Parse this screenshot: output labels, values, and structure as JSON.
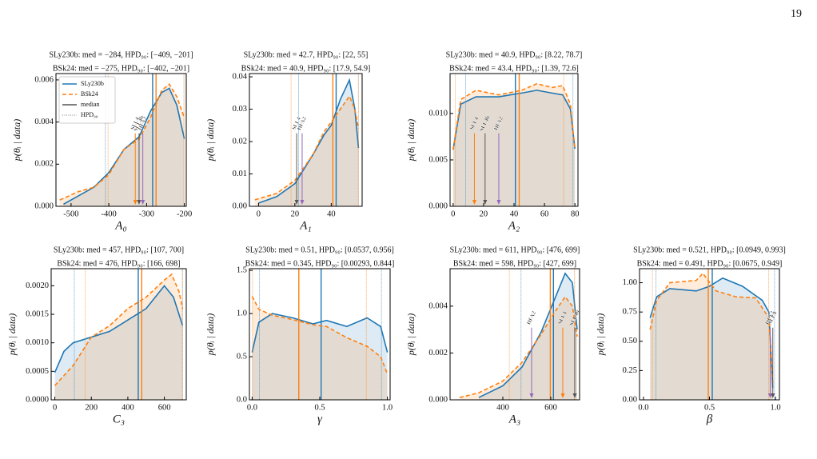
{
  "page_number": "19",
  "chart_data": [
    {
      "type": "line",
      "title": [
        "SLy230b: med = −284, HPD₉₀: [−409, −201]",
        "BSk24: med = −275, HPD₉₀: [−402, −201]"
      ],
      "xlabel": "A₀",
      "ylabel": "p(θᵢ | data)",
      "xlim": [
        -540,
        -195
      ],
      "ylim": [
        0,
        0.0063
      ],
      "xticks": [
        -500,
        -400,
        -300,
        -200
      ],
      "yticks": [
        {
          "value": 0,
          "label": "0.000"
        },
        {
          "value": 0.002,
          "label": "0.002"
        },
        {
          "value": 0.004,
          "label": "0.004"
        },
        {
          "value": 0.006,
          "label": "0.006"
        }
      ],
      "legend": true,
      "legend_extra": [
        "median",
        "HPD₉₀"
      ],
      "series": [
        {
          "name": "SLy230b",
          "color": "#1f77b4",
          "x": [
            -520,
            -480,
            -440,
            -400,
            -360,
            -320,
            -290,
            -260,
            -240,
            -220,
            -200
          ],
          "values": [
            0.0001,
            0.0005,
            0.0009,
            0.0016,
            0.0027,
            0.0033,
            0.0045,
            0.0054,
            0.0056,
            0.0048,
            0.0032
          ],
          "median": -284,
          "hpd": [
            -409,
            -201
          ]
        },
        {
          "name": "BSk24",
          "color": "#ff7f0e",
          "x": [
            -530,
            -480,
            -440,
            -400,
            -360,
            -320,
            -290,
            -260,
            -240,
            -220,
            -200
          ],
          "values": [
            0.0003,
            0.0007,
            0.0009,
            0.0015,
            0.0027,
            0.0032,
            0.0042,
            0.0055,
            0.0058,
            0.0052,
            0.0042
          ],
          "median": -275,
          "hpd": [
            -402,
            -201
          ]
        }
      ],
      "annotations": [
        {
          "label": "SLL4",
          "x": -330,
          "color": "#ff7f0e"
        },
        {
          "label": "SLL4b",
          "x": -320,
          "color": "#555555"
        },
        {
          "label": "HFA2",
          "x": -310,
          "color": "#9467bd"
        }
      ]
    },
    {
      "type": "line",
      "title": [
        "SLy230b: med = 42.7, HPD₉₀: [22, 55]",
        "BSk24: med = 40.9, HPD₉₀: [17.9, 54.9]"
      ],
      "xlabel": "A₁",
      "ylabel": "p(θᵢ | data)",
      "xlim": [
        -5,
        57
      ],
      "ylim": [
        0,
        0.041
      ],
      "xticks": [
        0,
        20,
        40
      ],
      "yticks": [
        {
          "value": 0,
          "label": "0.00"
        },
        0.01,
        0.02,
        0.03,
        0.04
      ],
      "series": [
        {
          "name": "SLy230b",
          "color": "#1f77b4",
          "x": [
            0,
            10,
            20,
            30,
            36,
            40,
            45,
            50,
            53,
            55
          ],
          "values": [
            0.001,
            0.003,
            0.007,
            0.016,
            0.022,
            0.025,
            0.033,
            0.039,
            0.03,
            0.018
          ],
          "median": 42.7,
          "hpd": [
            22,
            55
          ]
        },
        {
          "name": "BSk24",
          "color": "#ff7f0e",
          "x": [
            -2,
            10,
            20,
            30,
            36,
            40,
            45,
            50,
            53,
            55
          ],
          "values": [
            0.002,
            0.004,
            0.008,
            0.016,
            0.023,
            0.026,
            0.03,
            0.034,
            0.03,
            0.024
          ],
          "median": 40.9,
          "hpd": [
            17.9,
            54.9
          ]
        }
      ],
      "annotations": [
        {
          "label": "SLL4",
          "x": 21,
          "color": "#555555"
        },
        {
          "label": "HFA2",
          "x": 24,
          "color": "#9467bd"
        }
      ]
    },
    {
      "type": "line",
      "title": [
        "SLy230b: med = 40.9, HPD₉₀: [8.22, 78.7]",
        "BSk24: med = 43.4, HPD₉₀: [1.39, 72.6]"
      ],
      "xlabel": "A₂",
      "ylabel": "p(θᵢ | data)",
      "xlim": [
        -2,
        82
      ],
      "ylim": [
        0,
        0.0143
      ],
      "xticks": [
        0,
        20,
        40,
        60,
        80
      ],
      "yticks": [
        {
          "value": 0,
          "label": "0.000"
        },
        {
          "value": 0.005,
          "label": "0.005"
        },
        {
          "value": 0.01,
          "label": "0.010"
        }
      ],
      "series": [
        {
          "name": "SLy230b",
          "color": "#1f77b4",
          "x": [
            0,
            5,
            15,
            30,
            45,
            55,
            65,
            72,
            77,
            80
          ],
          "values": [
            0.0061,
            0.011,
            0.0118,
            0.0118,
            0.0122,
            0.0125,
            0.0122,
            0.012,
            0.0105,
            0.0062
          ],
          "median": 40.9,
          "hpd": [
            8.22,
            78.7
          ]
        },
        {
          "name": "BSk24",
          "color": "#ff7f0e",
          "x": [
            0,
            5,
            15,
            30,
            45,
            55,
            65,
            72,
            77,
            80
          ],
          "values": [
            0.0061,
            0.0115,
            0.0125,
            0.012,
            0.0125,
            0.0132,
            0.0128,
            0.013,
            0.011,
            0.0062
          ],
          "median": 43.4,
          "hpd": [
            1.39,
            72.6
          ]
        }
      ],
      "annotations": [
        {
          "label": "SLL4",
          "x": 14,
          "color": "#ff7f0e"
        },
        {
          "label": "SLL4b",
          "x": 21,
          "color": "#555555"
        },
        {
          "label": "HFA2",
          "x": 30,
          "color": "#9467bd"
        }
      ]
    },
    {
      "type": "line",
      "title": [
        "SLy230b: med = 457, HPD₉₀: [107, 700]",
        "BSk24: med = 476, HPD₉₀: [166, 698]"
      ],
      "xlabel": "C₃",
      "ylabel": "p(θᵢ | data)",
      "xlim": [
        -20,
        720
      ],
      "ylim": [
        0,
        0.0023
      ],
      "xticks": [
        0,
        200,
        400,
        600
      ],
      "yticks": [
        {
          "value": 0,
          "label": "0.0000"
        },
        0.0005,
        {
          "value": 0.001,
          "label": "0.0010"
        },
        0.0015,
        {
          "value": 0.002,
          "label": "0.0020"
        }
      ],
      "series": [
        {
          "name": "SLy230b",
          "color": "#1f77b4",
          "x": [
            0,
            50,
            100,
            200,
            300,
            400,
            500,
            600,
            650,
            700
          ],
          "values": [
            0.00048,
            0.00085,
            0.001,
            0.0011,
            0.0012,
            0.0014,
            0.0016,
            0.002,
            0.0018,
            0.0013
          ],
          "median": 457,
          "hpd": [
            107,
            700
          ]
        },
        {
          "name": "BSk24",
          "color": "#ff7f0e",
          "x": [
            0,
            100,
            200,
            300,
            400,
            500,
            600,
            640,
            680,
            700
          ],
          "values": [
            0.00025,
            0.0006,
            0.0011,
            0.0013,
            0.0016,
            0.0018,
            0.0021,
            0.0022,
            0.0019,
            0.0016
          ],
          "median": 476,
          "hpd": [
            166,
            698
          ]
        }
      ]
    },
    {
      "type": "line",
      "title": [
        "SLy230b: med = 0.51, HPD₉₀: [0.0537, 0.956]",
        "BSk24: med = 0.345, HPD₉₀: [0.00293, 0.844]"
      ],
      "xlabel": "γ",
      "ylabel": "p(θᵢ | data)",
      "xlim": [
        -0.02,
        1.02
      ],
      "ylim": [
        0,
        1.52
      ],
      "xticks": [
        {
          "value": 0,
          "label": "0.0"
        },
        0.5,
        {
          "value": 1,
          "label": "1.0"
        }
      ],
      "yticks": [
        {
          "value": 0,
          "label": "0.0"
        },
        0.5,
        {
          "value": 1,
          "label": "1.0"
        },
        1.5
      ],
      "series": [
        {
          "name": "SLy230b",
          "color": "#1f77b4",
          "x": [
            0,
            0.05,
            0.15,
            0.3,
            0.45,
            0.55,
            0.7,
            0.85,
            0.95,
            1
          ],
          "values": [
            0.55,
            0.9,
            1.0,
            0.95,
            0.88,
            0.92,
            0.85,
            0.95,
            0.85,
            0.55
          ],
          "median": 0.51,
          "hpd": [
            0.0537,
            0.956
          ]
        },
        {
          "name": "BSk24",
          "color": "#ff7f0e",
          "x": [
            0,
            0.05,
            0.15,
            0.3,
            0.45,
            0.55,
            0.7,
            0.85,
            0.95,
            1
          ],
          "values": [
            1.2,
            1.05,
            0.98,
            0.93,
            0.87,
            0.85,
            0.72,
            0.62,
            0.5,
            0.3
          ],
          "median": 0.345,
          "hpd": [
            0.00293,
            0.844
          ]
        }
      ]
    },
    {
      "type": "line",
      "title": [
        "SLy230b: med = 611, HPD₉₀: [476, 699]",
        "BSk24: med = 598, HPD₉₀: [427, 699]"
      ],
      "xlabel": "A₃",
      "ylabel": "p(θᵢ | data)",
      "xlim": [
        180,
        720
      ],
      "ylim": [
        0,
        0.0056
      ],
      "xticks": [
        400,
        600
      ],
      "yticks": [
        {
          "value": 0,
          "label": "0.000"
        },
        {
          "value": 0.002,
          "label": "0.002"
        },
        {
          "value": 0.004,
          "label": "0.004"
        }
      ],
      "series": [
        {
          "name": "SLy230b",
          "color": "#1f77b4",
          "x": [
            300,
            400,
            480,
            560,
            620,
            660,
            690,
            710
          ],
          "values": [
            0.0001,
            0.0006,
            0.0014,
            0.0029,
            0.0044,
            0.0054,
            0.005,
            0.003
          ],
          "median": 611,
          "hpd": [
            476,
            699
          ]
        },
        {
          "name": "BSk24",
          "color": "#ff7f0e",
          "x": [
            220,
            300,
            400,
            480,
            560,
            620,
            660,
            690,
            710
          ],
          "values": [
            0.0001,
            0.0003,
            0.0008,
            0.0016,
            0.0028,
            0.0038,
            0.0044,
            0.004,
            0.0027
          ],
          "median": 598,
          "hpd": [
            427,
            699
          ]
        }
      ],
      "annotations": [
        {
          "label": "HFA2",
          "x": 520,
          "color": "#9467bd"
        },
        {
          "label": "SLL4",
          "x": 650,
          "color": "#ff7f0e"
        },
        {
          "label": "SLL4b",
          "x": 700,
          "color": "#555555"
        }
      ]
    },
    {
      "type": "line",
      "title": [
        "SLy230b: med = 0.521, HPD₉₀: [0.0949, 0.993]",
        "BSk24: med = 0.491, HPD₉₀: [0.0675, 0.949]"
      ],
      "xlabel": "β",
      "ylabel": "p(θᵢ | data)",
      "xlim": [
        -0.03,
        1.03
      ],
      "ylim": [
        0,
        1.12
      ],
      "xticks": [
        {
          "value": 0,
          "label": "0.0"
        },
        0.5,
        {
          "value": 1,
          "label": "1.0"
        }
      ],
      "yticks": [
        {
          "value": 0,
          "label": "0.00"
        },
        0.25,
        {
          "value": 0.5,
          "label": "0.50"
        },
        0.75,
        {
          "value": 1,
          "label": "1.00"
        }
      ],
      "series": [
        {
          "name": "SLy230b",
          "color": "#1f77b4",
          "x": [
            0.05,
            0.1,
            0.2,
            0.4,
            0.5,
            0.6,
            0.75,
            0.9,
            0.95,
            0.98
          ],
          "values": [
            0.7,
            0.88,
            0.95,
            0.93,
            0.97,
            1.04,
            0.97,
            0.85,
            0.75,
            0.1
          ],
          "median": 0.521,
          "hpd": [
            0.0949,
            0.993
          ]
        },
        {
          "name": "BSk24",
          "color": "#ff7f0e",
          "x": [
            0.05,
            0.1,
            0.2,
            0.4,
            0.45,
            0.55,
            0.7,
            0.85,
            0.95,
            0.98
          ],
          "values": [
            0.6,
            0.85,
            1.0,
            1.02,
            1.08,
            0.93,
            0.88,
            0.87,
            0.7,
            0.15
          ],
          "median": 0.491,
          "hpd": [
            0.0675,
            0.949
          ]
        }
      ],
      "annotations": [
        {
          "label": "HFA2",
          "x": 0.96,
          "color": "#9467bd"
        },
        {
          "label": "SLL4",
          "x": 0.98,
          "color": "#555555"
        }
      ]
    }
  ]
}
